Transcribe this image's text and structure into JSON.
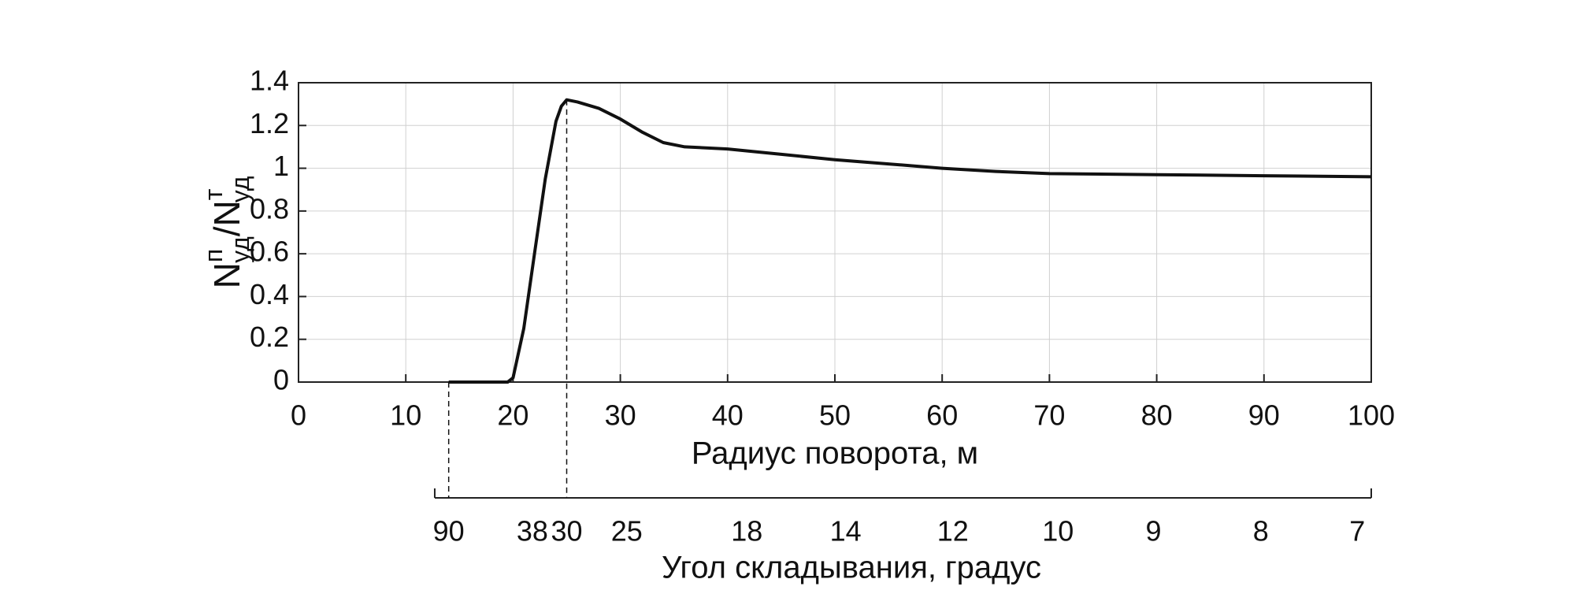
{
  "chart_data": {
    "type": "line",
    "xlabel": "Радиус поворота, м",
    "ylabel": [
      "N",
      "п",
      "уд",
      "/N",
      "т",
      "уд"
    ],
    "x2label": "Угол складывания, градус",
    "xlim": [
      0,
      100
    ],
    "xticks": [
      0,
      10,
      20,
      30,
      40,
      50,
      60,
      70,
      80,
      90,
      100
    ],
    "ylim": [
      0,
      1.4
    ],
    "yticks": [
      0,
      0.2,
      0.4,
      0.6,
      0.8,
      1,
      1.2,
      1.4
    ],
    "x2lim": [
      12.7,
      100
    ],
    "x2ticks": [
      {
        "value": 14,
        "label": "90"
      },
      {
        "value": 21.8,
        "label": "38"
      },
      {
        "value": 25,
        "label": "30"
      },
      {
        "value": 30.6,
        "label": "25"
      },
      {
        "value": 41.8,
        "label": "18"
      },
      {
        "value": 51,
        "label": "14"
      },
      {
        "value": 61,
        "label": "12"
      },
      {
        "value": 70.8,
        "label": "10"
      },
      {
        "value": 79.7,
        "label": "9"
      },
      {
        "value": 89.7,
        "label": "8"
      },
      {
        "value": 98.7,
        "label": "7"
      }
    ],
    "grid": true,
    "x": [
      14,
      19.5,
      20,
      21,
      22,
      23,
      24,
      24.5,
      25,
      26,
      28,
      30,
      32,
      34,
      36,
      40,
      45,
      50,
      55,
      60,
      65,
      70,
      80,
      90,
      100
    ],
    "series": [
      {
        "color": "#111111",
        "values": [
          0,
          0,
          0.02,
          0.25,
          0.6,
          0.95,
          1.22,
          1.29,
          1.32,
          1.31,
          1.28,
          1.23,
          1.17,
          1.12,
          1.1,
          1.09,
          1.065,
          1.04,
          1.02,
          1.0,
          0.985,
          0.975,
          0.97,
          0.965,
          0.96
        ]
      }
    ],
    "dashed_lines": [
      {
        "x": 14,
        "y": 0
      },
      {
        "x": 25,
        "y": 1.32
      }
    ]
  }
}
